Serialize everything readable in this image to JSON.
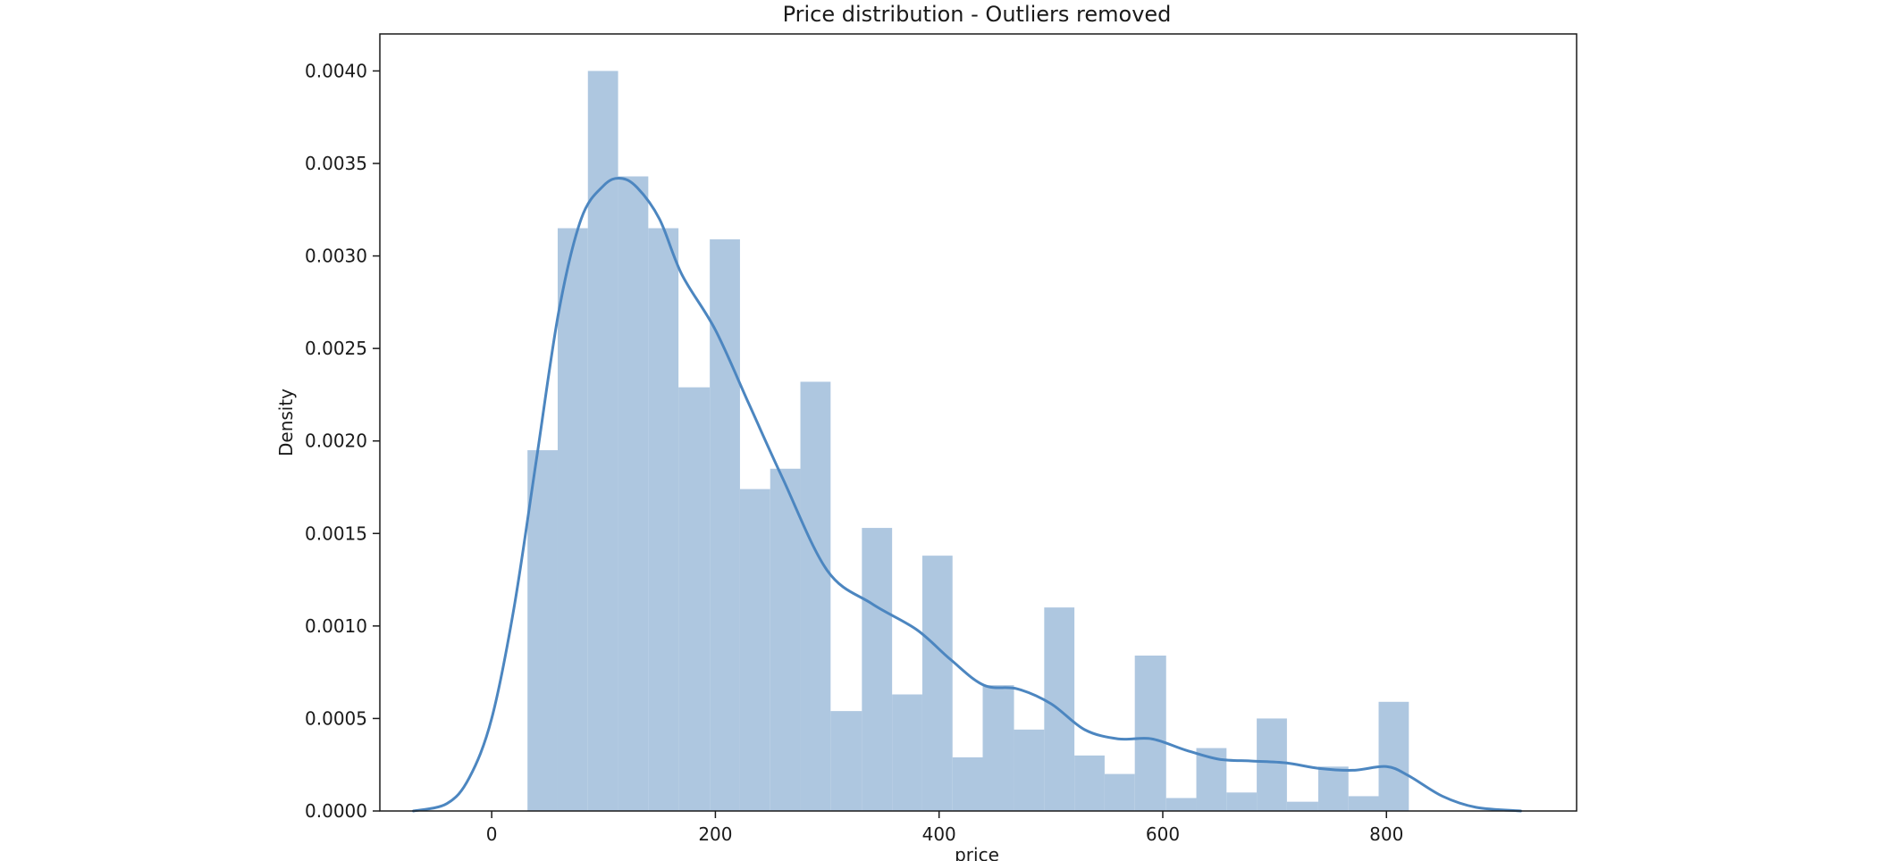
{
  "chart_data": {
    "type": "bar",
    "subtype": "histogram-with-kde",
    "title": "Price distribution - Outliers removed",
    "xlabel": "price",
    "ylabel": "Density",
    "xlim": [
      -100,
      970
    ],
    "ylim": [
      0,
      0.0042
    ],
    "grid": false,
    "legend": "none",
    "bar_color": "#aec7e0",
    "line_color": "#4c86c0",
    "x_ticks": [
      0,
      200,
      400,
      600,
      800
    ],
    "y_ticks": [
      0.0,
      0.0005,
      0.001,
      0.0015,
      0.002,
      0.0025,
      0.003,
      0.0035,
      0.004
    ],
    "y_tick_labels": [
      "0.0000",
      "0.0005",
      "0.0010",
      "0.0015",
      "0.0020",
      "0.0025",
      "0.0030",
      "0.0035",
      "0.0040"
    ],
    "bins": [
      {
        "x0": 32,
        "x1": 59,
        "density": 0.00195
      },
      {
        "x0": 59,
        "x1": 86,
        "density": 0.00315
      },
      {
        "x0": 86,
        "x1": 113,
        "density": 0.004
      },
      {
        "x0": 113,
        "x1": 140,
        "density": 0.00343
      },
      {
        "x0": 140,
        "x1": 167,
        "density": 0.00315
      },
      {
        "x0": 167,
        "x1": 195,
        "density": 0.00229
      },
      {
        "x0": 195,
        "x1": 222,
        "density": 0.00309
      },
      {
        "x0": 222,
        "x1": 249,
        "density": 0.00174
      },
      {
        "x0": 249,
        "x1": 276,
        "density": 0.00185
      },
      {
        "x0": 276,
        "x1": 303,
        "density": 0.00232
      },
      {
        "x0": 303,
        "x1": 331,
        "density": 0.00054
      },
      {
        "x0": 331,
        "x1": 358,
        "density": 0.00153
      },
      {
        "x0": 358,
        "x1": 385,
        "density": 0.00063
      },
      {
        "x0": 385,
        "x1": 412,
        "density": 0.00138
      },
      {
        "x0": 412,
        "x1": 439,
        "density": 0.00029
      },
      {
        "x0": 439,
        "x1": 467,
        "density": 0.00068
      },
      {
        "x0": 467,
        "x1": 494,
        "density": 0.00044
      },
      {
        "x0": 494,
        "x1": 521,
        "density": 0.0011
      },
      {
        "x0": 521,
        "x1": 548,
        "density": 0.0003
      },
      {
        "x0": 548,
        "x1": 575,
        "density": 0.0002
      },
      {
        "x0": 575,
        "x1": 603,
        "density": 0.00084
      },
      {
        "x0": 603,
        "x1": 630,
        "density": 7e-05
      },
      {
        "x0": 630,
        "x1": 657,
        "density": 0.00034
      },
      {
        "x0": 657,
        "x1": 684,
        "density": 0.0001
      },
      {
        "x0": 684,
        "x1": 711,
        "density": 0.0005
      },
      {
        "x0": 711,
        "x1": 739,
        "density": 5e-05
      },
      {
        "x0": 739,
        "x1": 766,
        "density": 0.00024
      },
      {
        "x0": 766,
        "x1": 793,
        "density": 8e-05
      },
      {
        "x0": 793,
        "x1": 820,
        "density": 0.00059
      }
    ],
    "kde": {
      "x": [
        -70,
        -40,
        -20,
        0,
        20,
        40,
        60,
        80,
        100,
        115,
        130,
        150,
        170,
        200,
        230,
        260,
        300,
        340,
        380,
        410,
        440,
        470,
        500,
        530,
        560,
        590,
        620,
        650,
        680,
        710,
        740,
        770,
        800,
        820,
        850,
        880,
        920
      ],
      "y": [
        0.0,
        4e-05,
        0.00018,
        0.0005,
        0.0011,
        0.0019,
        0.0027,
        0.0032,
        0.00338,
        0.00342,
        0.00337,
        0.0032,
        0.0029,
        0.0026,
        0.0022,
        0.0018,
        0.0013,
        0.00112,
        0.00098,
        0.00082,
        0.00068,
        0.00066,
        0.00058,
        0.00044,
        0.00039,
        0.00039,
        0.00033,
        0.00028,
        0.00027,
        0.00026,
        0.00023,
        0.00022,
        0.00024,
        0.00019,
        8e-05,
        2e-05,
        0.0
      ]
    }
  }
}
